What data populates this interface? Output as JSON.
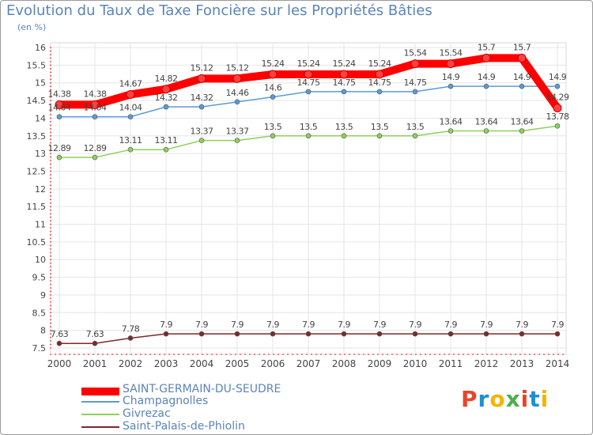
{
  "title": "Evolution du Taux de Taxe Foncière sur les Propriétés Bâties",
  "unit": "(en %)",
  "logo": "Proxiti",
  "logo_colors": [
    "#e8452c",
    "#1e90d0",
    "#f4b400",
    "#4caf50",
    "#e8452c",
    "#1e90d0",
    "#f4b400"
  ],
  "chart_data": {
    "type": "line",
    "x": [
      "2000",
      "2001",
      "2002",
      "2003",
      "2004",
      "2005",
      "2006",
      "2007",
      "2008",
      "2009",
      "2010",
      "2011",
      "2012",
      "2013",
      "2014"
    ],
    "ylim": [
      7.5,
      16
    ],
    "yticks": [
      "7.5",
      "8",
      "8.5",
      "9",
      "9.5",
      "10",
      "10.5",
      "11",
      "11.5",
      "12",
      "12.5",
      "13",
      "13.5",
      "14",
      "14.5",
      "15",
      "15.5",
      "16"
    ],
    "grid": true,
    "legend_position": "bottom",
    "series": [
      {
        "name": "SAINT-GERMAIN-DU-SEUDRE",
        "color": "#ff0000",
        "values": [
          14.38,
          14.38,
          14.67,
          14.82,
          15.12,
          15.12,
          15.24,
          15.24,
          15.24,
          15.24,
          15.54,
          15.54,
          15.7,
          15.7,
          14.29
        ],
        "labels": [
          "14.38",
          "14.38",
          "14.67",
          "14.82",
          "15.12",
          "15.12",
          "15.24",
          "15.24",
          "15.24",
          "15.24",
          "15.54",
          "15.54",
          "15.7",
          "15.7",
          "14.29"
        ]
      },
      {
        "name": "Champagnolles",
        "color": "#5b9bd5",
        "values": [
          14.04,
          14.04,
          14.04,
          14.32,
          14.32,
          14.46,
          14.6,
          14.75,
          14.75,
          14.75,
          14.75,
          14.9,
          14.9,
          14.9,
          14.9
        ],
        "labels": [
          "14.04",
          "14.04",
          "14.04",
          "14.32",
          "14.32",
          "14.46",
          "14.6",
          "14.75",
          "14.75",
          "14.75",
          "14.75",
          "14.9",
          "14.9",
          "14.9",
          "14.9"
        ]
      },
      {
        "name": "Givrezac",
        "color": "#8ed05a",
        "values": [
          12.89,
          12.89,
          13.11,
          13.11,
          13.37,
          13.37,
          13.5,
          13.5,
          13.5,
          13.5,
          13.5,
          13.64,
          13.64,
          13.64,
          13.78
        ],
        "labels": [
          "12.89",
          "12.89",
          "13.11",
          "13.11",
          "13.37",
          "13.37",
          "13.5",
          "13.5",
          "13.5",
          "13.5",
          "13.5",
          "13.64",
          "13.64",
          "13.64",
          "13.78"
        ]
      },
      {
        "name": "Saint-Palais-de-Phiolin",
        "color": "#7a2a2a",
        "values": [
          7.63,
          7.63,
          7.78,
          7.9,
          7.9,
          7.9,
          7.9,
          7.9,
          7.9,
          7.9,
          7.9,
          7.9,
          7.9,
          7.9,
          7.9
        ],
        "labels": [
          "7.63",
          "7.63",
          "7.78",
          "7.9",
          "7.9",
          "7.9",
          "7.9",
          "7.9",
          "7.9",
          "7.9",
          "7.9",
          "7.9",
          "7.9",
          "7.9",
          "7.9"
        ]
      }
    ]
  }
}
